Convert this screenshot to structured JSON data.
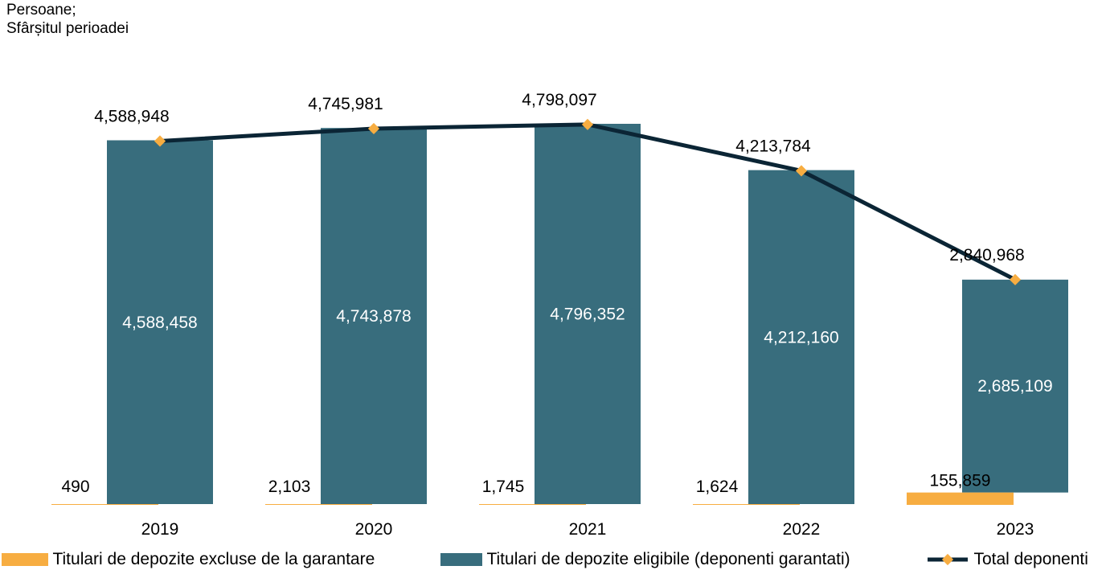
{
  "chart_data": {
    "type": "bar",
    "unit_label_line1": "Persoane;",
    "unit_label_line2": "Sfârșitul perioadei",
    "categories": [
      "2019",
      "2020",
      "2021",
      "2022",
      "2023"
    ],
    "series": [
      {
        "name": "Titulari de depozite excluse de la garantare",
        "kind": "bar",
        "color": "#F7AD41",
        "values": [
          490,
          2103,
          1745,
          1624,
          155859
        ],
        "value_labels": [
          "490",
          "2,103",
          "1,745",
          "1,624",
          "155,859"
        ]
      },
      {
        "name": "Titulari de depozite eligibile (deponenti garantati)",
        "kind": "bar",
        "color": "#386D7D",
        "values": [
          4588458,
          4743878,
          4796352,
          4212160,
          2685109
        ],
        "value_labels": [
          "4,588,458",
          "4,743,878",
          "4,796,352",
          "4,212,160",
          "2,685,109"
        ]
      },
      {
        "name": "Total deponenti",
        "kind": "line",
        "color": "#0B2535",
        "marker_color": "#F7AD41",
        "values": [
          4588948,
          4745981,
          4798097,
          4213784,
          2840968
        ],
        "value_labels": [
          "4,588,948",
          "4,745,981",
          "4,798,097",
          "4,213,784",
          "2,840,968"
        ]
      }
    ],
    "ylim": [
      0,
      5200000
    ],
    "grid": false,
    "legend_position": "bottom"
  }
}
